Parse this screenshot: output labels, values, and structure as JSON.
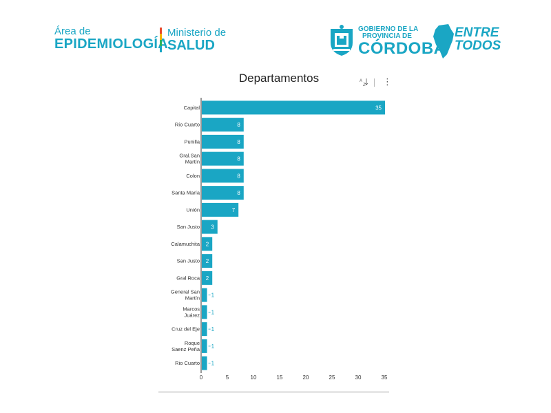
{
  "header": {
    "area_line1": "Área de",
    "area_line2": "EPIDEMIOLOGÍA",
    "ministerio_line1": "Ministerio de",
    "ministerio_line2": "SALUD",
    "gobierno_line1": "GOBIERNO DE LA",
    "gobierno_line2": "PROVINCIA DE",
    "gobierno_line3": "CÓRDOBA",
    "entre_line1": "ENTRE",
    "entre_line2": "TODOS",
    "brand_color": "#1aa6c4"
  },
  "toolbar": {
    "sort_icon": "sort-az-icon",
    "more_icon": "more-vertical-icon"
  },
  "chart_data": {
    "type": "bar",
    "orientation": "horizontal",
    "title": "Departamentos",
    "categories": [
      "Capital",
      "Río Cuarto",
      "Punilla",
      "Gral.San Martín",
      "Colon",
      "Santa María",
      "Unión",
      "San Justo",
      "Calamuchita",
      "San Justo",
      "Gral Roca",
      "General San Martín",
      "Marcos Juárez",
      "Cruz del Eje",
      "Roque Saenz Peña",
      "Rio Cuarto"
    ],
    "values": [
      35,
      8,
      8,
      8,
      8,
      8,
      7,
      3,
      2,
      2,
      2,
      1,
      1,
      1,
      1,
      1
    ],
    "xlim": [
      0,
      35
    ],
    "xticks": [
      0,
      5,
      10,
      15,
      20,
      25,
      30,
      35
    ],
    "bar_color": "#1aa6c4",
    "data_labels": true,
    "grid": false
  }
}
